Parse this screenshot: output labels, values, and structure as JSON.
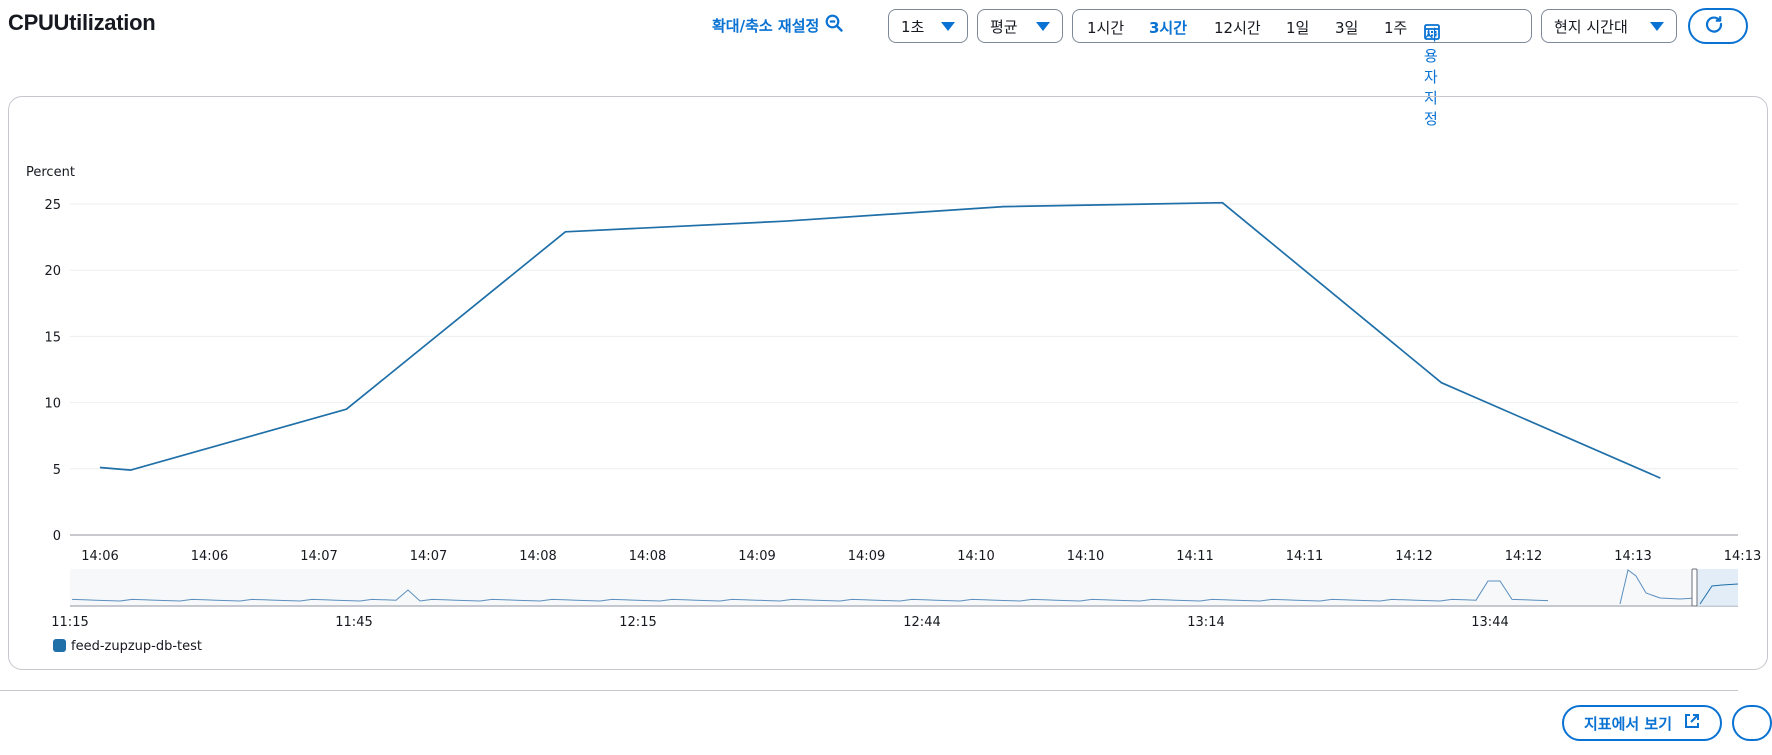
{
  "header": {
    "title": "CPUUtilization",
    "reset_zoom_label": "확대/축소 재설정",
    "period": "1초",
    "statistic": "평균",
    "time_ranges": [
      "1시간",
      "3시간",
      "12시간",
      "1일",
      "3일",
      "1주"
    ],
    "selected_range": "3시간",
    "custom_range_label": "사용자 지정",
    "timezone": "현지 시간대"
  },
  "footer": {
    "view_in_metrics_label": "지표에서 보기"
  },
  "chart_data": {
    "type": "line",
    "ylabel": "Percent",
    "ylim": [
      0,
      25
    ],
    "yticks": [
      0,
      5,
      10,
      15,
      20,
      25
    ],
    "xticks": [
      "14:06",
      "14:06",
      "14:07",
      "14:07",
      "14:08",
      "14:08",
      "14:09",
      "14:09",
      "14:10",
      "14:10",
      "14:11",
      "14:11",
      "14:12",
      "14:12",
      "14:13",
      "14:13"
    ],
    "x": [
      0.0,
      0.28,
      2.25,
      4.25,
      6.25,
      8.25,
      10.25,
      12.25,
      14.25
    ],
    "series": [
      {
        "name": "feed-zupzup-db-test",
        "color": "#1f6fa8",
        "values": [
          5.1,
          4.9,
          9.5,
          22.9,
          23.7,
          24.8,
          25.1,
          11.5,
          4.3
        ]
      }
    ],
    "grid": true,
    "legend_position": "bottom-left",
    "navigator": {
      "xticks": [
        "11:15",
        "11:45",
        "12:15",
        "12:44",
        "13:14",
        "13:44"
      ]
    }
  }
}
